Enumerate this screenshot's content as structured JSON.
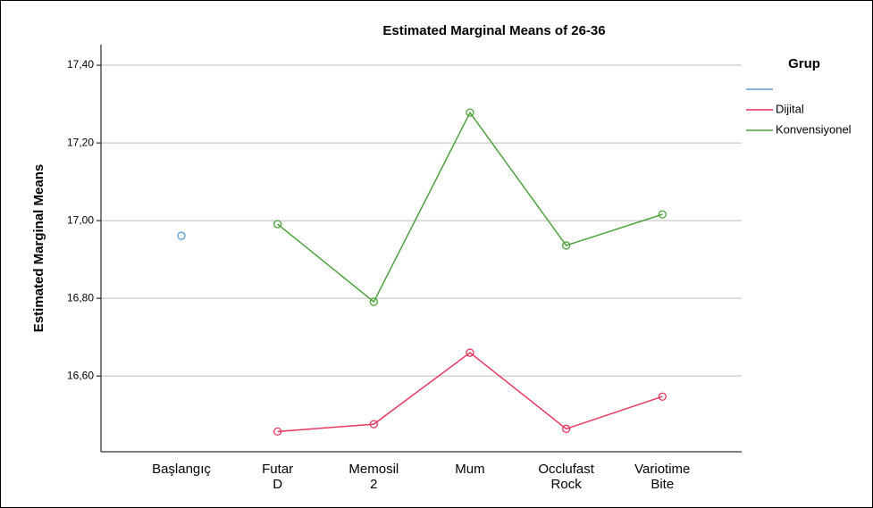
{
  "chart_data": {
    "type": "line",
    "title": "Estimated Marginal Means of 26-36",
    "y_label": "Estimated Marginal Means",
    "legend_title": "Grup",
    "categories": [
      "Başlangıç",
      "Futar D",
      "Memosil 2",
      "Mum",
      "Occlufast Rock",
      "Variotime Bite"
    ],
    "series": [
      {
        "name": null,
        "color": "#5b9bd5",
        "values": [
          16.961,
          null,
          null,
          null,
          null,
          null
        ]
      },
      {
        "name": "Dijital",
        "color": "#e8375f",
        "values": [
          null,
          16.457,
          16.476,
          16.66,
          16.464,
          16.547
        ]
      },
      {
        "name": "Konvensiyonel",
        "color": "#4ea03f",
        "values": [
          null,
          16.991,
          16.791,
          17.278,
          16.936,
          17.016
        ]
      }
    ],
    "ylim": [
      16.405,
      17.453
    ],
    "yticks": [
      {
        "value": 16.6,
        "label": "16,60"
      },
      {
        "value": 16.8,
        "label": "16,80"
      },
      {
        "value": 17.0,
        "label": "17,00"
      },
      {
        "value": 17.2,
        "label": "17,20"
      },
      {
        "value": 17.4,
        "label": "17,40"
      }
    ],
    "grid": true,
    "legend": "right"
  }
}
